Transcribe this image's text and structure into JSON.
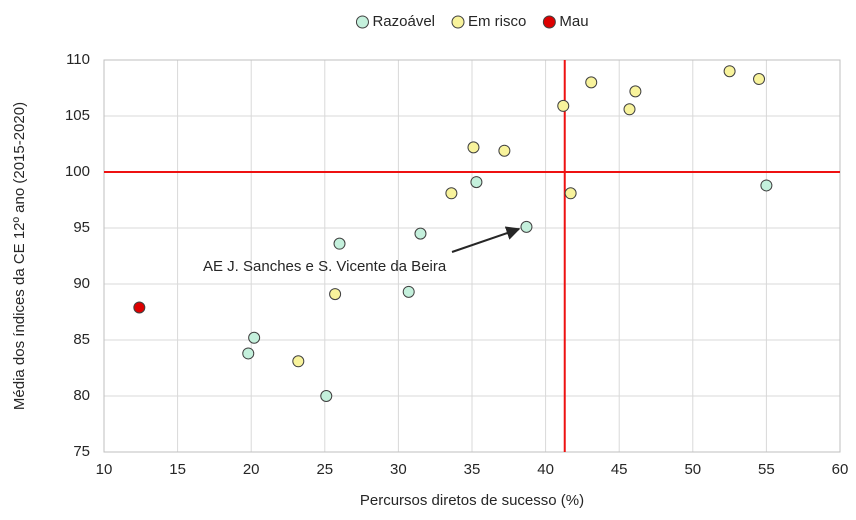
{
  "chart_data": {
    "type": "scatter",
    "x_label": "Percursos diretos de sucesso (%)",
    "y_label": "Média dos índices da CE 12º ano (2015-2020)",
    "xlim": [
      10,
      60
    ],
    "xticks": [
      10,
      15,
      20,
      25,
      30,
      35,
      40,
      45,
      50,
      55,
      60
    ],
    "ylim": [
      75,
      110
    ],
    "yticks": [
      75,
      80,
      85,
      90,
      95,
      100,
      105,
      110
    ],
    "grid": true,
    "legend": "top",
    "reference_lines": {
      "x": 41.3,
      "y": 100,
      "color": "#ee1111"
    },
    "annotation": "AE J. Sanches e S. Vicente da Beira",
    "series": [
      {
        "name": "Razoável",
        "color": "#c4f0dc",
        "x": [
          19.8,
          20.2,
          25.1,
          26.0,
          30.7,
          31.5,
          35.3,
          38.7,
          55.0
        ],
        "values": [
          83.8,
          85.2,
          80.0,
          93.6,
          89.3,
          94.5,
          99.1,
          95.1,
          98.8
        ]
      },
      {
        "name": "Em risco",
        "color": "#f8f39c",
        "x": [
          23.2,
          25.7,
          33.6,
          35.1,
          37.2,
          41.2,
          43.1,
          41.7,
          45.7,
          46.1,
          52.5,
          54.5
        ],
        "values": [
          83.1,
          89.1,
          98.1,
          102.2,
          101.9,
          105.9,
          108.0,
          98.1,
          105.6,
          107.2,
          109.0,
          108.3
        ]
      },
      {
        "name": "Mau",
        "color": "#dd0000",
        "x": [
          12.4
        ],
        "values": [
          87.9
        ]
      }
    ]
  }
}
